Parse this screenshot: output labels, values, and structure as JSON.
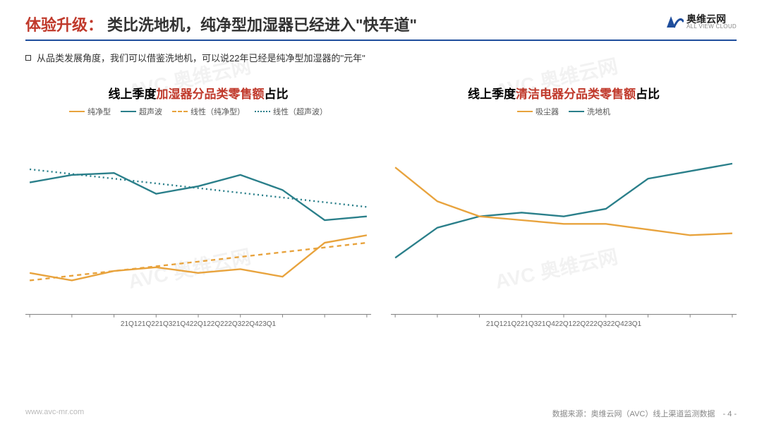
{
  "colors": {
    "accent_red": "#c0392b",
    "accent_blue": "#1f4e9c",
    "rule": "#1f4e9c",
    "orange": "#e8a33d",
    "teal": "#2a7f8a",
    "grid": "#dcdcdc",
    "axis": "#888888",
    "text_dark": "#333333"
  },
  "header": {
    "title_prefix": "体验升级：",
    "title_rest": "类比洗地机，纯净型加湿器已经进入\"快车道\"",
    "logo_cn": "奥维云网",
    "logo_en": "ALL VIEW CLOUD",
    "logo_abbr": "AVC"
  },
  "subtext": "从品类发展角度，我们可以借鉴洗地机，可以说22年已经是纯净型加湿器的\"元年\"",
  "chart_common": {
    "categories": [
      "21Q1",
      "21Q2",
      "21Q3",
      "21Q4",
      "22Q1",
      "22Q2",
      "22Q3",
      "22Q4",
      "23Q1"
    ],
    "ylim": [
      0,
      100
    ],
    "label_fontsize": 11,
    "title_fontsize": 17,
    "line_width": 2.2,
    "grid_color": "#dcdcdc",
    "background_color": "#ffffff"
  },
  "chart_left": {
    "type": "line",
    "title_pre": "线上季度",
    "title_em": "加湿器分品类零售额",
    "title_post": "占比",
    "legend": [
      {
        "label": "纯净型",
        "color": "#e8a33d",
        "dash": "solid"
      },
      {
        "label": "超声波",
        "color": "#2a7f8a",
        "dash": "solid"
      },
      {
        "label": "线性（纯净型）",
        "color": "#e8a33d",
        "dash": "dashed"
      },
      {
        "label": "线性（超声波）",
        "color": "#2a7f8a",
        "dash": "dotted"
      }
    ],
    "series": {
      "pure": [
        22,
        18,
        23,
        25,
        22,
        24,
        20,
        38,
        42
      ],
      "ultra": [
        70,
        74,
        75,
        64,
        68,
        74,
        66,
        50,
        52
      ],
      "pure_trend": [
        18,
        20.5,
        23,
        25.5,
        28,
        30.5,
        33,
        35.5,
        38
      ],
      "ultra_trend": [
        77,
        74.5,
        72,
        69.5,
        67,
        64.5,
        62,
        59.5,
        57
      ]
    }
  },
  "chart_right": {
    "type": "line",
    "title_pre": "线上季度",
    "title_em": "清洁电器分品类零售额",
    "title_post": "占比",
    "legend": [
      {
        "label": "吸尘器",
        "color": "#e8a33d",
        "dash": "solid"
      },
      {
        "label": "洗地机",
        "color": "#2a7f8a",
        "dash": "solid"
      }
    ],
    "series": {
      "vacuum": [
        78,
        60,
        52,
        50,
        48,
        48,
        45,
        42,
        43
      ],
      "washer": [
        30,
        46,
        52,
        54,
        52,
        56,
        72,
        76,
        80
      ]
    }
  },
  "footer": {
    "site": "www.avc-mr.com",
    "source": "数据来源：奥维云网（AVC）线上渠道监测数据",
    "page": "- 4 -"
  },
  "watermark": "AVC 奥维云网"
}
